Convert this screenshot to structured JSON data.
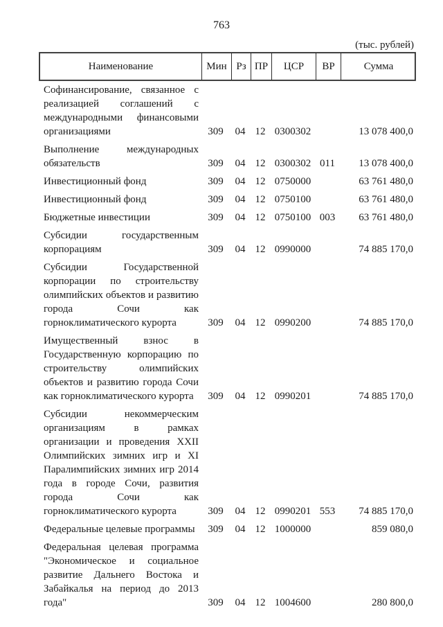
{
  "page": {
    "number": "763",
    "units_label": "(тыс. рублей)"
  },
  "table": {
    "headers": [
      "Наименование",
      "Мин",
      "Рз",
      "ПР",
      "ЦСР",
      "ВР",
      "Сумма"
    ],
    "rows": [
      {
        "name": "Софинансирование, связанное с реализацией соглашений с международными финансовыми организациями",
        "min": "309",
        "rz": "04",
        "pr": "12",
        "csr": "0300302",
        "vr": "",
        "sum": "13 078 400,0"
      },
      {
        "name": "Выполнение международных обязательств",
        "min": "309",
        "rz": "04",
        "pr": "12",
        "csr": "0300302",
        "vr": "011",
        "sum": "13 078 400,0"
      },
      {
        "name": "Инвестиционный фонд",
        "min": "309",
        "rz": "04",
        "pr": "12",
        "csr": "0750000",
        "vr": "",
        "sum": "63 761 480,0"
      },
      {
        "name": "Инвестиционный фонд",
        "min": "309",
        "rz": "04",
        "pr": "12",
        "csr": "0750100",
        "vr": "",
        "sum": "63 761 480,0"
      },
      {
        "name": "Бюджетные инвестиции",
        "min": "309",
        "rz": "04",
        "pr": "12",
        "csr": "0750100",
        "vr": "003",
        "sum": "63 761 480,0"
      },
      {
        "name": "Субсидии государственным корпорациям",
        "min": "309",
        "rz": "04",
        "pr": "12",
        "csr": "0990000",
        "vr": "",
        "sum": "74 885 170,0"
      },
      {
        "name": "Субсидии Государственной корпорации по строительству олимпийских объектов и развитию города Сочи как горноклиматического курорта",
        "min": "309",
        "rz": "04",
        "pr": "12",
        "csr": "0990200",
        "vr": "",
        "sum": "74 885 170,0"
      },
      {
        "name": "Имущественный взнос в Государственную корпорацию по строительству олимпийских объектов и развитию города Сочи как горноклиматического курорта",
        "min": "309",
        "rz": "04",
        "pr": "12",
        "csr": "0990201",
        "vr": "",
        "sum": "74 885 170,0"
      },
      {
        "name": "Субсидии некоммерческим организациям в рамках организации и проведения XXII Олимпийских зимних игр и XI Паралимпийских зимних игр 2014 года в городе Сочи, развития города Сочи как горноклиматического курорта",
        "min": "309",
        "rz": "04",
        "pr": "12",
        "csr": "0990201",
        "vr": "553",
        "sum": "74 885 170,0"
      },
      {
        "name": "Федеральные целевые программы",
        "min": "309",
        "rz": "04",
        "pr": "12",
        "csr": "1000000",
        "vr": "",
        "sum": "859 080,0"
      },
      {
        "name": "Федеральная целевая программа \"Экономическое и социальное развитие Дальнего Востока и Забайкалья на период до 2013 года\"",
        "min": "309",
        "rz": "04",
        "pr": "12",
        "csr": "1004600",
        "vr": "",
        "sum": "280 800,0"
      }
    ]
  }
}
